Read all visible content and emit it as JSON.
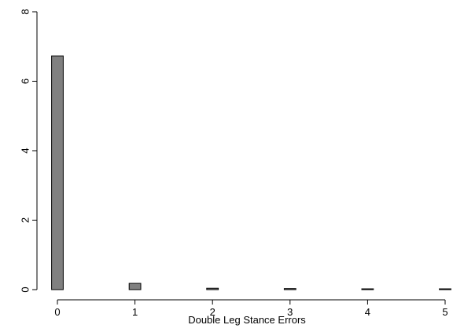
{
  "chart_data": {
    "type": "bar",
    "title": "",
    "xlabel": "Double Leg Stance Errors",
    "ylabel": "",
    "bar_width": 0.15,
    "xlim": [
      0,
      5
    ],
    "ylim": [
      0,
      8
    ],
    "x_ticks": [
      0,
      1,
      2,
      3,
      4,
      5
    ],
    "y_ticks": [
      0,
      2,
      4,
      6,
      8
    ],
    "grid": false,
    "bar_color": "#808080",
    "bars": [
      {
        "x": 0,
        "value": 6.73
      },
      {
        "x": 1,
        "value": 0.18
      },
      {
        "x": 2,
        "value": 0.04
      },
      {
        "x": 3,
        "value": 0.03
      },
      {
        "x": 4,
        "value": 0.015
      },
      {
        "x": 5,
        "value": 0.01
      }
    ]
  }
}
